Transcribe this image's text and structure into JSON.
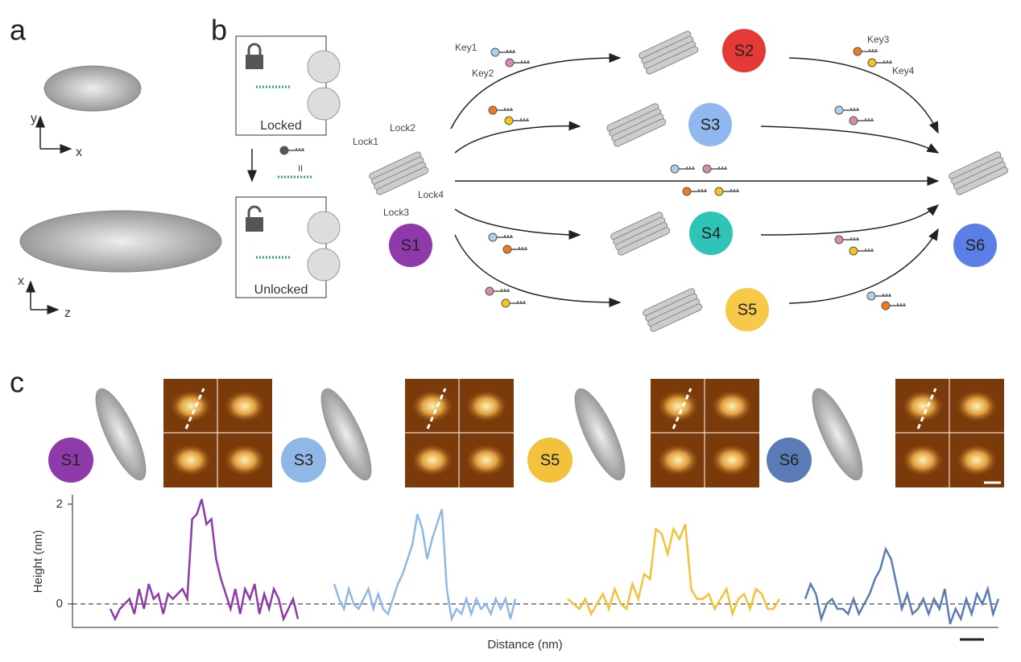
{
  "panel_labels": [
    "a",
    "b",
    "c"
  ],
  "panel_a": {
    "top_axes": [
      "y",
      "x"
    ],
    "bottom_axes": [
      "x",
      "z"
    ]
  },
  "panel_b": {
    "locked": "Locked",
    "unlocked": "Unlocked",
    "hybrid_mark": "II",
    "keys": [
      "Key1",
      "Key2",
      "Key3",
      "Key4"
    ],
    "locks": [
      "Lock1",
      "Lock2",
      "Lock3",
      "Lock4"
    ],
    "states": [
      "S1",
      "S2",
      "S3",
      "S4",
      "S5",
      "S6"
    ]
  },
  "chart_data": {
    "type": "line",
    "xlabel": "Distance (nm)",
    "ylabel": "Height (nm)",
    "ylim": [
      -0.47,
      2.19
    ],
    "yticks": [
      0,
      2
    ],
    "series": [
      {
        "name": "S1",
        "color": "#8e3aa8",
        "values": [
          -0.1,
          -0.3,
          -0.1,
          0,
          0.1,
          -0.2,
          0.3,
          -0.1,
          0.4,
          0.1,
          0.2,
          -0.2,
          0.2,
          0.1,
          0.2,
          0.3,
          0.1,
          1.7,
          1.8,
          2.1,
          1.6,
          1.7,
          0.9,
          0.5,
          0.2,
          -0.1,
          0.3,
          -0.2,
          0.3,
          0.1,
          0.4,
          -0.2,
          0.2,
          -0.1,
          0.3,
          0.1,
          -0.3,
          -0.1,
          0.1,
          -0.3
        ]
      },
      {
        "name": "S3",
        "color": "#8fb8e6",
        "values": [
          0.4,
          0.1,
          -0.1,
          0.3,
          0,
          -0.1,
          0.1,
          0.3,
          -0.1,
          0.2,
          -0.1,
          -0.2,
          0.1,
          0.4,
          0.6,
          0.9,
          1.2,
          1.8,
          1.5,
          0.9,
          1.3,
          1.6,
          1.9,
          0.3,
          -0.3,
          -0.1,
          -0.2,
          0.1,
          -0.2,
          0.1,
          -0.1,
          0,
          -0.2,
          0.1,
          -0.1,
          0.1,
          -0.3,
          0.1
        ]
      },
      {
        "name": "S5",
        "color": "#f2c23c",
        "values": [
          0.1,
          0,
          -0.1,
          0.1,
          -0.2,
          0,
          0.2,
          -0.1,
          0.3,
          0,
          -0.1,
          0.4,
          0.1,
          0.6,
          0.5,
          1.5,
          1.4,
          1.0,
          1.5,
          1.3,
          1.6,
          0.3,
          0.1,
          0.1,
          0.2,
          -0.1,
          0.1,
          0.3,
          -0.2,
          0.1,
          0.2,
          -0.1,
          0.3,
          0.2,
          -0.1,
          -0.1,
          0.1
        ]
      },
      {
        "name": "S6",
        "color": "#5a7bb5",
        "values": [
          0.1,
          0.4,
          0.2,
          -0.3,
          0,
          0.1,
          -0.1,
          -0.1,
          -0.2,
          0.1,
          -0.2,
          0,
          0.2,
          0.5,
          0.7,
          1.1,
          0.9,
          0.4,
          -0.1,
          0.2,
          -0.2,
          -0.1,
          0.1,
          -0.2,
          0.1,
          -0.1,
          0.3,
          -0.4,
          -0.1,
          -0.3,
          0.1,
          -0.2,
          0.2,
          0,
          0.3,
          -0.2,
          0.1
        ]
      }
    ]
  }
}
